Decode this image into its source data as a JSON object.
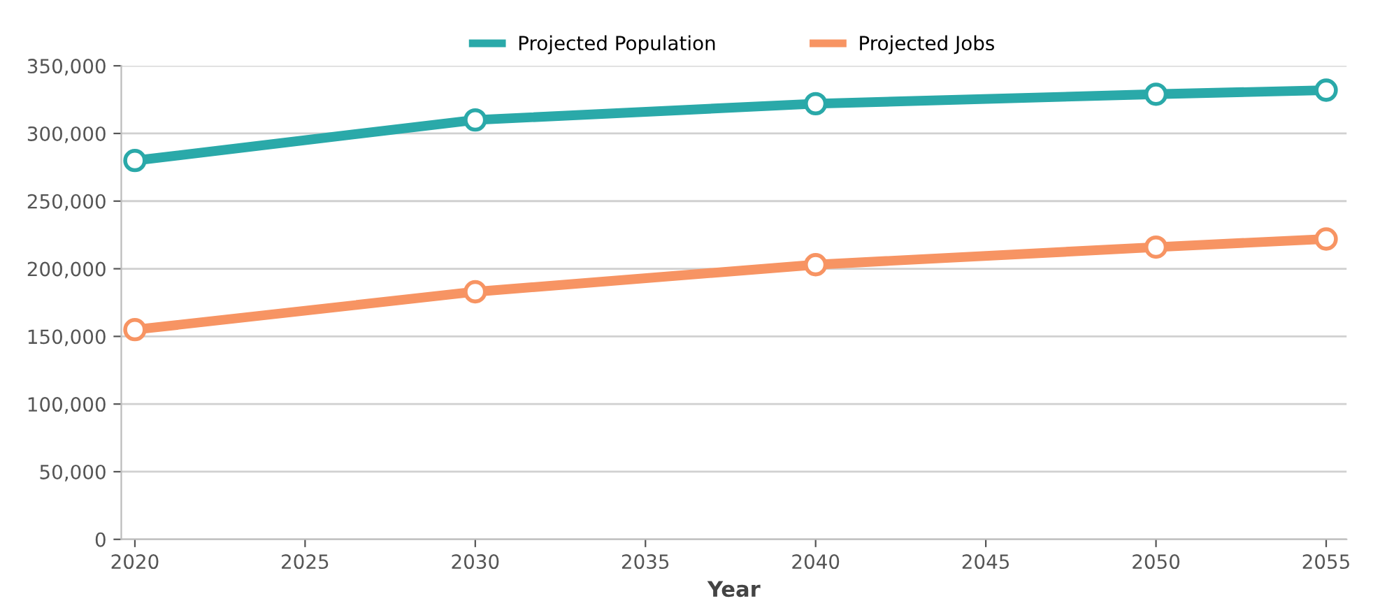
{
  "chart_data": {
    "type": "line",
    "xlabel": "Year",
    "x": [
      2020,
      2030,
      2040,
      2050,
      2055
    ],
    "series": [
      {
        "name": "Projected Population",
        "color": "#2aa9a9",
        "values": [
          280000,
          310000,
          322000,
          329000,
          332000
        ]
      },
      {
        "name": "Projected Jobs",
        "color": "#f79463",
        "values": [
          155000,
          183000,
          203000,
          216000,
          222000
        ]
      }
    ],
    "xlim": [
      2019.6,
      2055.6
    ],
    "xticks": [
      2020,
      2025,
      2030,
      2035,
      2040,
      2045,
      2050,
      2055
    ],
    "ylim": [
      0,
      350000
    ],
    "yticks": [
      {
        "value": 0,
        "label": "0"
      },
      {
        "value": 50000,
        "label": "50,000"
      },
      {
        "value": 100000,
        "label": "100,000"
      },
      {
        "value": 150000,
        "label": "150,000"
      },
      {
        "value": 200000,
        "label": "200,000"
      },
      {
        "value": 250000,
        "label": "250,000"
      },
      {
        "value": 300000,
        "label": "300,000"
      },
      {
        "value": 350000,
        "label": "350,000"
      }
    ],
    "grid": "y",
    "legend": "top",
    "marker": "circle",
    "line_style": "solid"
  }
}
